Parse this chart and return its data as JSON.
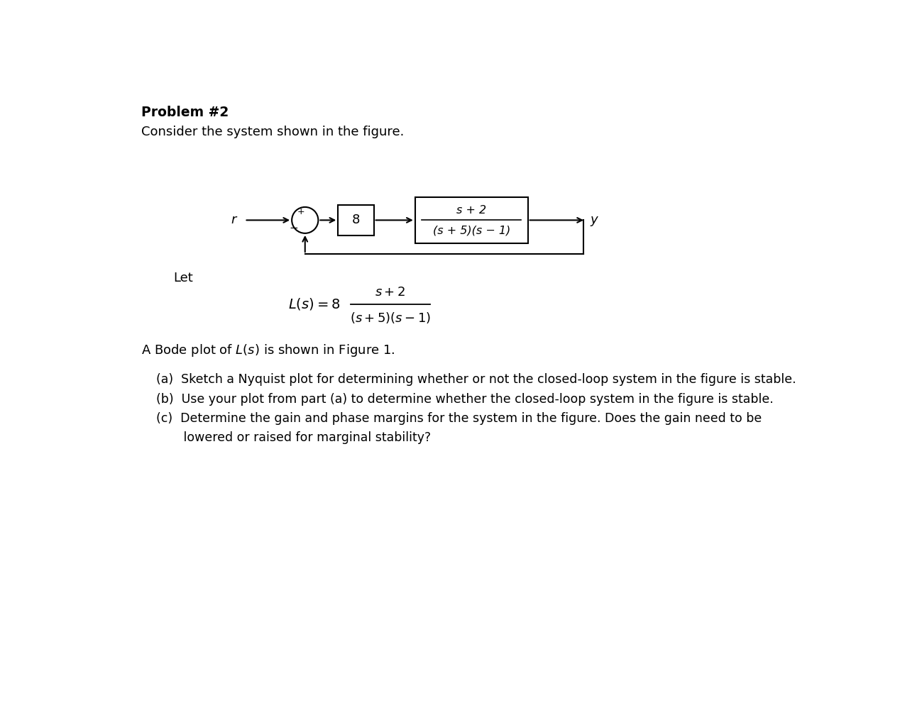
{
  "background_color": "#ffffff",
  "title": "Problem #2",
  "subtitle": "Consider the system shown in the figure.",
  "let_text": "Let",
  "parts": [
    "(a)  Sketch a Nyquist plot for determining whether or not the closed-loop system in the figure is stable.",
    "(b)  Use your plot from part (a) to determine whether the closed-loop system in the figure is stable.",
    "(c)  Determine the gain and phase margins for the system in the figure. Does the gain need to be",
    "       lowered or raised for marginal stability?"
  ],
  "diagram": {
    "r_label": "r",
    "y_label": "y",
    "gain_label": "8",
    "tf_numerator": "s + 2",
    "tf_denominator": "(s + 5)(s − 1)",
    "sum_plus": "+",
    "sum_minus": "−"
  },
  "formula_lhs": "L(s) = 8",
  "formula_num": "s + 2",
  "formula_den": "(s + 5)(s − 1)"
}
